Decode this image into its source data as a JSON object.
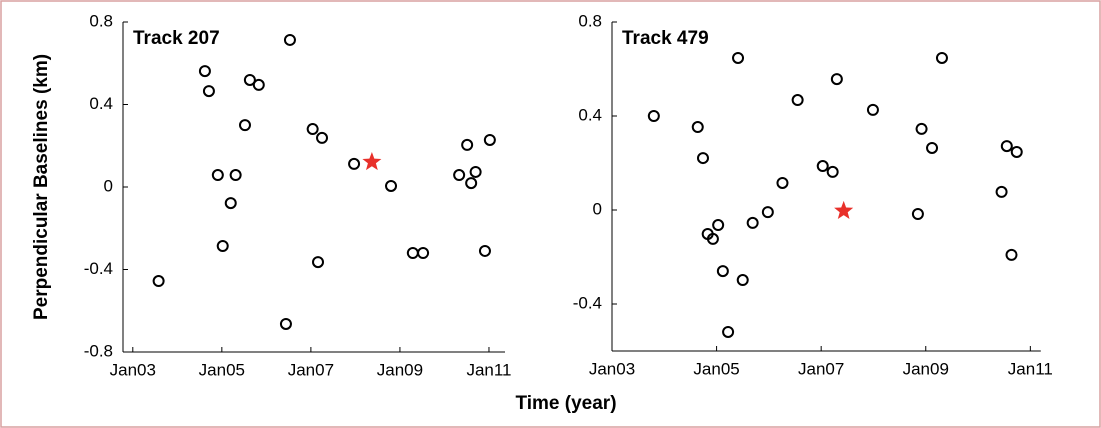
{
  "chart_data": [
    {
      "type": "scatter",
      "title": "Track 207",
      "ylabel": "Perpendicular Baselines (km)",
      "x": [
        2003.58,
        2004.62,
        2004.71,
        2004.91,
        2005.02,
        2005.2,
        2005.31,
        2005.52,
        2005.63,
        2005.83,
        2006.44,
        2006.53,
        2007.04,
        2007.16,
        2007.25,
        2007.97,
        2008.8,
        2009.29,
        2009.52,
        2010.33,
        2010.51,
        2010.6,
        2010.7,
        2010.91,
        2011.02
      ],
      "values": [
        -0.456,
        0.562,
        0.465,
        0.058,
        -0.286,
        -0.078,
        0.058,
        0.3,
        0.519,
        0.495,
        -0.664,
        0.713,
        0.281,
        -0.364,
        0.238,
        0.112,
        0.005,
        -0.32,
        -0.32,
        0.058,
        0.204,
        0.019,
        0.073,
        -0.31,
        0.228
      ],
      "color": "#000000",
      "highlight": {
        "x": 2008.37,
        "y": 0.121,
        "color": "#e8302a"
      },
      "xlim": [
        2002.78,
        2011.36
      ],
      "ylim": [
        -0.8,
        0.8
      ],
      "xticks": [
        {
          "value": 2003,
          "label": "Jan03"
        },
        {
          "value": 2005,
          "label": "Jan05"
        },
        {
          "value": 2007,
          "label": "Jan07"
        },
        {
          "value": 2009,
          "label": "Jan09"
        },
        {
          "value": 2011,
          "label": "Jan11"
        }
      ],
      "yticks": [
        -0.8,
        -0.4,
        0,
        0.4,
        0.8
      ]
    },
    {
      "type": "scatter",
      "title": "Track 479",
      "x": [
        2003.8,
        2004.64,
        2004.74,
        2004.83,
        2004.93,
        2005.03,
        2005.12,
        2005.22,
        2005.41,
        2005.5,
        2005.69,
        2005.98,
        2006.26,
        2006.55,
        2007.03,
        2007.22,
        2007.3,
        2007.99,
        2008.85,
        2008.92,
        2009.12,
        2009.31,
        2010.45,
        2010.55,
        2010.64,
        2010.74
      ],
      "values": [
        0.4,
        0.353,
        0.221,
        -0.102,
        -0.123,
        -0.064,
        -0.26,
        -0.519,
        0.647,
        -0.298,
        -0.055,
        -0.009,
        0.115,
        0.468,
        0.187,
        0.162,
        0.557,
        0.426,
        -0.017,
        0.345,
        0.264,
        0.647,
        0.077,
        0.272,
        -0.191,
        0.247
      ],
      "color": "#000000",
      "highlight": {
        "x": 2007.43,
        "y": -0.004,
        "color": "#e8302a"
      },
      "xlim": [
        2003,
        2011.2
      ],
      "ylim": [
        -0.6,
        0.8
      ],
      "xticks": [
        {
          "value": 2003,
          "label": "Jan03"
        },
        {
          "value": 2005,
          "label": "Jan05"
        },
        {
          "value": 2007,
          "label": "Jan07"
        },
        {
          "value": 2009,
          "label": "Jan09"
        },
        {
          "value": 2011,
          "label": "Jan11"
        }
      ],
      "yticks": [
        -0.4,
        0,
        0.4,
        0.8
      ]
    }
  ],
  "xlabel": "Time (year)"
}
